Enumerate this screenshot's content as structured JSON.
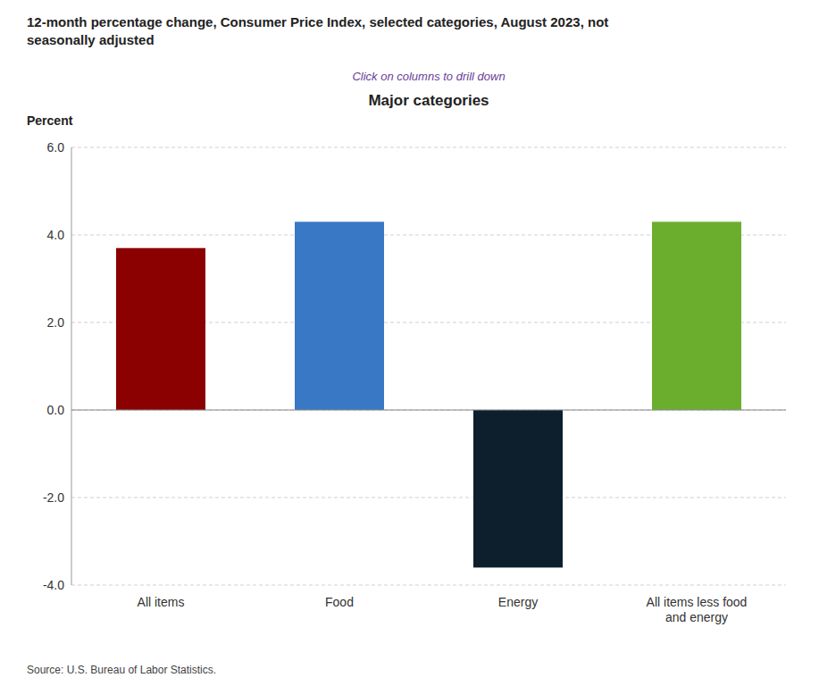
{
  "chart_data": {
    "type": "bar",
    "title": [
      "12-month percentage change, Consumer Price Index, selected categories, August 2023, not",
      "seasonally adjusted"
    ],
    "subtitle": "Click on columns to drill down",
    "chart_title": "Major categories",
    "ylabel": "Percent",
    "source": "Source: U.S. Bureau of Labor Statistics.",
    "categories": [
      "All items",
      "Food",
      "Energy",
      "All items less food\nand energy"
    ],
    "values": [
      3.7,
      4.3,
      -3.6,
      4.3
    ],
    "colors": [
      "#8B0000",
      "#3878C5",
      "#0D1F2D",
      "#6BAE2D"
    ],
    "ylim": [
      -4.0,
      6.0
    ],
    "yticks": [
      {
        "value": -4.0,
        "label": "-4.0"
      },
      {
        "value": -2.0,
        "label": "-2.0"
      },
      {
        "value": 0.0,
        "label": "0.0"
      },
      {
        "value": 2.0,
        "label": "2.0"
      },
      {
        "value": 4.0,
        "label": "4.0"
      },
      {
        "value": 6.0,
        "label": "6.0"
      }
    ],
    "grid": true
  }
}
